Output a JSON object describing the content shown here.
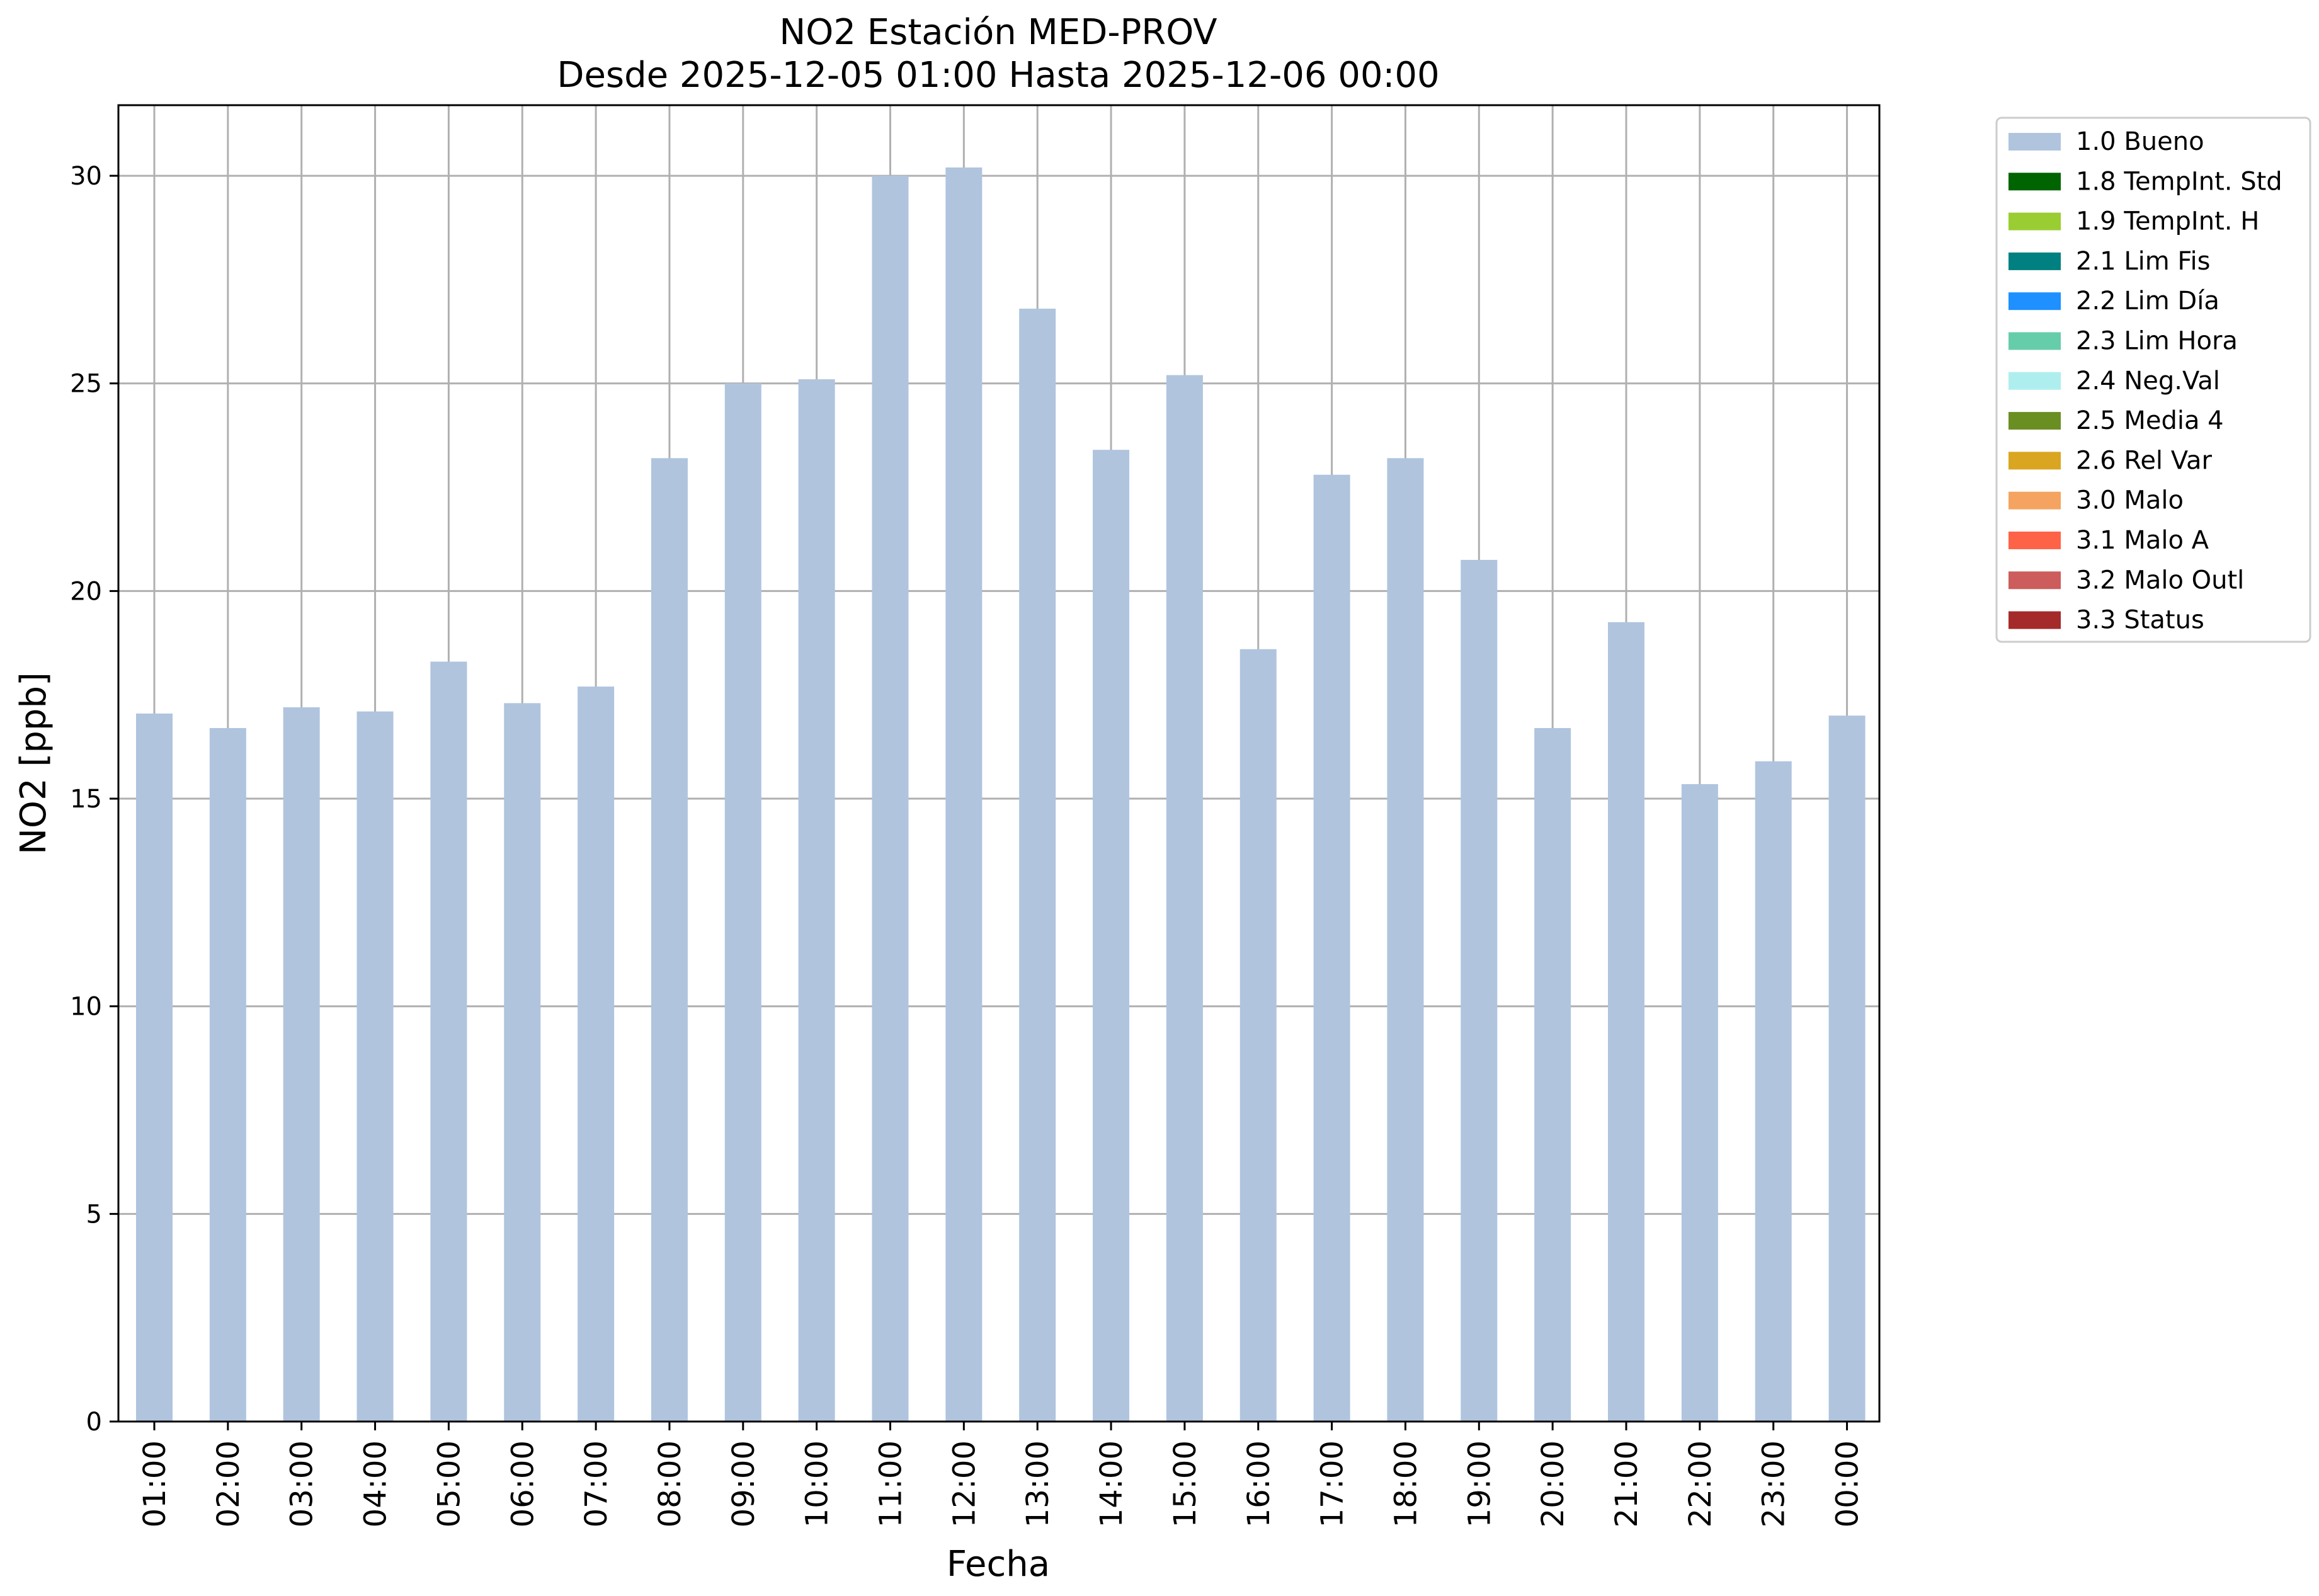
{
  "chart_data": {
    "type": "bar",
    "title": "NO2 Estación MED-PROV",
    "subtitle": "Desde 2025-12-05 01:00 Hasta 2025-12-06 00:00",
    "xlabel": "Fecha",
    "ylabel": "NO2 [ppb]",
    "ylim": [
      0,
      31.7
    ],
    "yticks": [
      "0",
      "5",
      "10",
      "15",
      "20",
      "25",
      "30"
    ],
    "grid": true,
    "legend_position": "outside-top-right",
    "categories": [
      "01:00",
      "02:00",
      "03:00",
      "04:00",
      "05:00",
      "06:00",
      "07:00",
      "08:00",
      "09:00",
      "10:00",
      "11:00",
      "12:00",
      "13:00",
      "14:00",
      "15:00",
      "16:00",
      "17:00",
      "18:00",
      "19:00",
      "20:00",
      "21:00",
      "22:00",
      "23:00",
      "00:00"
    ],
    "series": [
      {
        "name": "1.0 Bueno",
        "color": "#b0c4de",
        "values": [
          17.05,
          16.7,
          17.2,
          17.1,
          18.3,
          17.3,
          17.7,
          23.2,
          25.0,
          25.1,
          30.0,
          30.2,
          26.8,
          23.4,
          25.2,
          18.6,
          22.8,
          23.2,
          20.75,
          16.7,
          19.25,
          15.35,
          15.9,
          17.0
        ]
      }
    ],
    "legend": [
      {
        "label": "1.0 Bueno",
        "color": "#b0c4de"
      },
      {
        "label": "1.8 TempInt. Std",
        "color": "#006400"
      },
      {
        "label": "1.9 TempInt. H",
        "color": "#9acd32"
      },
      {
        "label": "2.1 Lim Fis",
        "color": "#008080"
      },
      {
        "label": "2.2 Lim Día",
        "color": "#1e90ff"
      },
      {
        "label": "2.3 Lim Hora",
        "color": "#66cdaa"
      },
      {
        "label": "2.4 Neg.Val",
        "color": "#afeeee"
      },
      {
        "label": "2.5 Media 4",
        "color": "#6b8e23"
      },
      {
        "label": "2.6 Rel Var",
        "color": "#daa520"
      },
      {
        "label": "3.0 Malo",
        "color": "#f4a460"
      },
      {
        "label": "3.1 Malo A",
        "color": "#ff6347"
      },
      {
        "label": "3.2 Malo Outl",
        "color": "#cd5c5c"
      },
      {
        "label": "3.3 Status",
        "color": "#a52a2a"
      }
    ]
  }
}
